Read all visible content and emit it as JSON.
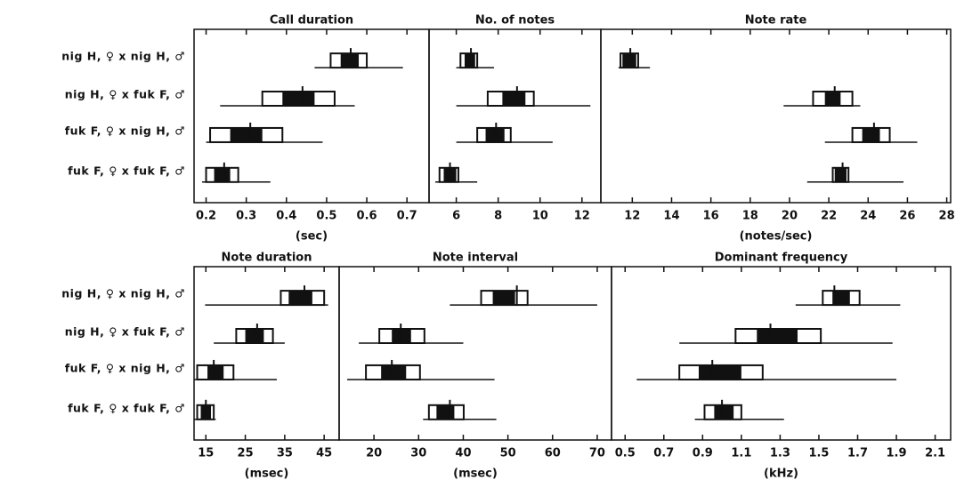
{
  "chart_data": [
    {
      "type": "range",
      "title": "Call duration",
      "xlabel": "(sec)",
      "categories": [
        "nig H, ♀ x nig H, ♂",
        "nig H, ♀ x fuk F, ♂",
        "fuk F, ♀ x nig H, ♂",
        "fuk F, ♀ x fuk F, ♂"
      ],
      "xlim": [
        0.17,
        0.755
      ],
      "xticks": [
        0.2,
        0.3,
        0.4,
        0.5,
        0.6,
        0.7
      ],
      "mean": [
        0.56,
        0.44,
        0.31,
        0.245
      ],
      "min": [
        0.47,
        0.235,
        0.2,
        0.19
      ],
      "max": [
        0.69,
        0.57,
        0.49,
        0.36
      ],
      "box_low": [
        0.51,
        0.34,
        0.21,
        0.2
      ],
      "box_high": [
        0.6,
        0.52,
        0.39,
        0.28
      ],
      "fill_low": [
        0.535,
        0.39,
        0.26,
        0.22
      ],
      "fill_high": [
        0.58,
        0.47,
        0.34,
        0.26
      ]
    },
    {
      "type": "range",
      "title": "No. of notes",
      "xlabel": "",
      "xlim": [
        4.7,
        12.9
      ],
      "xticks": [
        6,
        8,
        10,
        12
      ],
      "mean": [
        6.7,
        8.9,
        7.9,
        5.7
      ],
      "min": [
        6,
        6,
        6,
        5
      ],
      "max": [
        7.8,
        12.4,
        10.6,
        7
      ],
      "box_low": [
        6.2,
        7.5,
        7,
        5.2
      ],
      "box_high": [
        7,
        9.7,
        8.6,
        6.1
      ],
      "fill_low": [
        6.4,
        8.2,
        7.4,
        5.4
      ],
      "fill_high": [
        6.9,
        9.3,
        8.3,
        6
      ]
    },
    {
      "type": "range",
      "title": "Note rate",
      "xlabel": "(notes/sec)",
      "xlim": [
        10.4,
        28.2
      ],
      "xticks": [
        12,
        14,
        16,
        18,
        20,
        22,
        24,
        26,
        28
      ],
      "mean": [
        11.9,
        22.3,
        24.3,
        22.7
      ],
      "min": [
        11.3,
        19.7,
        21.8,
        20.9
      ],
      "max": [
        12.9,
        23.6,
        26.5,
        25.8
      ],
      "box_low": [
        11.4,
        21.2,
        23.2,
        22.2
      ],
      "box_high": [
        12.3,
        23.2,
        25.1,
        23
      ],
      "fill_low": [
        11.5,
        21.8,
        23.7,
        22.3
      ],
      "fill_high": [
        12.2,
        22.6,
        24.6,
        22.9
      ]
    },
    {
      "type": "range",
      "title": "Note duration",
      "xlabel": "(msec)",
      "categories": [
        "nig H, ♀ x nig H, ♂",
        "nig H, ♀ x fuk F, ♂",
        "fuk F, ♀ x nig H, ♂",
        "fuk F, ♀ x fuk F, ♂"
      ],
      "xlim": [
        12,
        48.8
      ],
      "xticks": [
        15,
        25,
        35,
        45
      ],
      "mean": [
        40,
        28,
        17,
        15
      ],
      "min": [
        14.8,
        17,
        12,
        12
      ],
      "max": [
        46,
        35,
        33,
        17.5
      ],
      "box_low": [
        34,
        22.7,
        12.8,
        12.8
      ],
      "box_high": [
        45,
        32,
        22,
        17
      ],
      "fill_low": [
        36,
        25,
        15.4,
        13.7
      ],
      "fill_high": [
        42,
        29.7,
        19.5,
        16.3
      ]
    },
    {
      "type": "range",
      "title": "Note interval",
      "xlabel": "(msec)",
      "xlim": [
        12.2,
        73.2
      ],
      "xticks": [
        20,
        30,
        40,
        50,
        60,
        70
      ],
      "mean": [
        52,
        26,
        24,
        37
      ],
      "min": [
        37,
        16.6,
        14,
        31
      ],
      "max": [
        70,
        40,
        47,
        47.4
      ],
      "box_low": [
        44,
        21.2,
        18.2,
        32.3
      ],
      "box_high": [
        54.4,
        31.3,
        30.3,
        40.1
      ],
      "fill_low": [
        46.6,
        24,
        21.6,
        34
      ],
      "fill_high": [
        51.6,
        28.3,
        27.2,
        38
      ]
    },
    {
      "type": "range",
      "title": "Dominant frequency",
      "xlabel": "(kHz)",
      "xlim": [
        0.43,
        2.18
      ],
      "xticks": [
        0.5,
        0.7,
        0.9,
        1.1,
        1.3,
        1.5,
        1.7,
        1.9,
        2.1
      ],
      "mean": [
        1.58,
        1.25,
        0.95,
        1.0
      ],
      "min": [
        1.38,
        0.78,
        0.56,
        0.86
      ],
      "max": [
        1.92,
        1.88,
        1.9,
        1.32
      ],
      "box_low": [
        1.52,
        1.07,
        0.78,
        0.91
      ],
      "box_high": [
        1.71,
        1.51,
        1.21,
        1.1
      ],
      "fill_low": [
        1.57,
        1.18,
        0.88,
        0.96
      ],
      "fill_high": [
        1.66,
        1.39,
        1.1,
        1.06
      ]
    }
  ]
}
